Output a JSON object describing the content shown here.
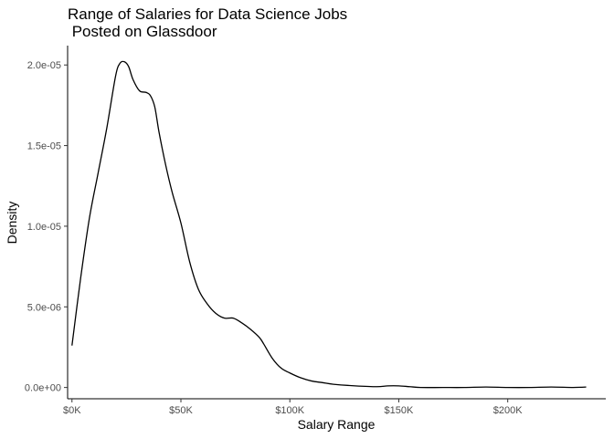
{
  "chart_data": {
    "type": "line",
    "title_lines": [
      "Range of Salaries for Data Science Jobs",
      " Posted on Glassdoor"
    ],
    "xlabel": "Salary Range",
    "ylabel": "Density",
    "xlim": [
      -2000,
      245000
    ],
    "ylim": [
      -7e-07,
      2.12e-05
    ],
    "x_ticks": [
      {
        "value": 0,
        "label": "$0K"
      },
      {
        "value": 50000,
        "label": "$50K"
      },
      {
        "value": 100000,
        "label": "$100K"
      },
      {
        "value": 150000,
        "label": "$150K"
      },
      {
        "value": 200000,
        "label": "$200K"
      }
    ],
    "y_ticks": [
      {
        "value": 0.0,
        "label": "0.0e+00"
      },
      {
        "value": 5e-06,
        "label": "5.0e-06"
      },
      {
        "value": 1e-05,
        "label": "1.0e-05"
      },
      {
        "value": 1.5e-05,
        "label": "1.5e-05"
      },
      {
        "value": 2e-05,
        "label": "2.0e-05"
      }
    ],
    "grid": false,
    "series": [
      {
        "color": "#000000",
        "x": [
          0,
          4000,
          8000,
          12000,
          16000,
          20000,
          22000,
          24000,
          26000,
          28000,
          31000,
          34000,
          36000,
          38000,
          40000,
          43000,
          46000,
          50000,
          54000,
          58000,
          62000,
          66000,
          70000,
          74000,
          78000,
          82000,
          86000,
          88000,
          92000,
          96000,
          100000,
          105000,
          110000,
          115000,
          120000,
          130000,
          140000,
          145000,
          150000,
          155000,
          160000,
          170000,
          180000,
          190000,
          200000,
          210000,
          220000,
          230000,
          236000
        ],
        "y": [
          2.6e-06,
          6.8e-06,
          1.05e-05,
          1.33e-05,
          1.61e-05,
          1.93e-05,
          2.01e-05,
          2.02e-05,
          1.99e-05,
          1.91e-05,
          1.84e-05,
          1.83e-05,
          1.81e-05,
          1.74e-05,
          1.58e-05,
          1.38e-05,
          1.21e-05,
          1.02e-05,
          7.8e-06,
          6.1e-06,
          5.2e-06,
          4.6e-06,
          4.3e-06,
          4.3e-06,
          4e-06,
          3.6e-06,
          3.1e-06,
          2.7e-06,
          1.8e-06,
          1.2e-06,
          9e-07,
          6e-07,
          4e-07,
          3e-07,
          2e-07,
          1e-07,
          5e-08,
          1e-07,
          1e-07,
          5e-08,
          0.0,
          0.0,
          0.0,
          3e-08,
          0.0,
          0.0,
          3e-08,
          0.0,
          3e-08
        ]
      }
    ]
  }
}
